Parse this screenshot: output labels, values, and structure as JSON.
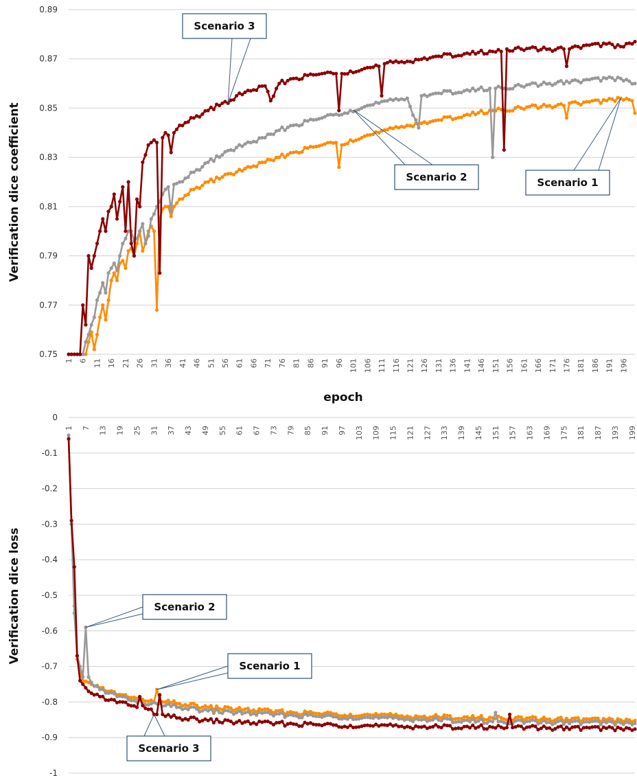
{
  "chart_data": [
    {
      "type": "line",
      "xlabel": "epoch",
      "ylabel": "Verification dice coefficient",
      "ylim": [
        0.75,
        0.89
      ],
      "yticks": [
        "0.75",
        "0.77",
        "0.79",
        "0.81",
        "0.83",
        "0.85",
        "0.87",
        "0.89"
      ],
      "xlim": [
        1,
        200
      ],
      "xtick_start": 1,
      "xtick_step": 5,
      "grid": true,
      "annotations": [
        {
          "text": "Scenario 3",
          "series": "Scenario 3",
          "x": 57
        },
        {
          "text": "Scenario 2",
          "series": "Scenario 2",
          "x": 101
        },
        {
          "text": "Scenario 1",
          "series": "Scenario 1",
          "x": 195
        }
      ],
      "series": [
        {
          "name": "Scenario 1",
          "color": "#ff8c00",
          "x": [
            1,
            6,
            7,
            8,
            9,
            10,
            11,
            12,
            13,
            14,
            15,
            16,
            17,
            18,
            19,
            20,
            21,
            22,
            23,
            24,
            25,
            26,
            27,
            28,
            29,
            30,
            31,
            32,
            33,
            34,
            35,
            36,
            37,
            38,
            40,
            45,
            50,
            55,
            60,
            65,
            70,
            75,
            80,
            90,
            95,
            96,
            97,
            100,
            110,
            120,
            130,
            140,
            150,
            160,
            170,
            175,
            176,
            177,
            180,
            190,
            195,
            199,
            200
          ],
          "y": [
            0.74,
            0.74,
            0.75,
            0.755,
            0.759,
            0.752,
            0.758,
            0.765,
            0.77,
            0.764,
            0.772,
            0.78,
            0.783,
            0.78,
            0.787,
            0.788,
            0.785,
            0.792,
            0.793,
            0.79,
            0.795,
            0.8,
            0.792,
            0.795,
            0.8,
            0.802,
            0.8,
            0.768,
            0.805,
            0.809,
            0.81,
            0.81,
            0.806,
            0.81,
            0.813,
            0.817,
            0.82,
            0.822,
            0.824,
            0.826,
            0.828,
            0.83,
            0.832,
            0.835,
            0.836,
            0.826,
            0.835,
            0.837,
            0.84,
            0.843,
            0.845,
            0.847,
            0.849,
            0.85,
            0.851,
            0.851,
            0.846,
            0.852,
            0.852,
            0.853,
            0.854,
            0.853,
            0.848
          ]
        },
        {
          "name": "Scenario 2",
          "color": "#999999",
          "x": [
            1,
            6,
            7,
            8,
            9,
            10,
            11,
            12,
            13,
            14,
            15,
            16,
            17,
            18,
            19,
            20,
            21,
            22,
            23,
            24,
            25,
            26,
            27,
            28,
            29,
            30,
            31,
            32,
            33,
            34,
            35,
            36,
            37,
            38,
            40,
            45,
            50,
            55,
            60,
            65,
            70,
            75,
            80,
            90,
            100,
            110,
            120,
            124,
            125,
            130,
            140,
            149,
            150,
            151,
            160,
            170,
            180,
            190,
            195,
            200
          ],
          "y": [
            0.74,
            0.75,
            0.755,
            0.758,
            0.762,
            0.765,
            0.772,
            0.775,
            0.779,
            0.775,
            0.783,
            0.785,
            0.787,
            0.784,
            0.79,
            0.795,
            0.797,
            0.8,
            0.8,
            0.796,
            0.797,
            0.8,
            0.803,
            0.795,
            0.798,
            0.805,
            0.807,
            0.81,
            0.812,
            0.815,
            0.817,
            0.818,
            0.808,
            0.819,
            0.82,
            0.824,
            0.828,
            0.831,
            0.834,
            0.836,
            0.838,
            0.841,
            0.843,
            0.846,
            0.849,
            0.852,
            0.854,
            0.842,
            0.855,
            0.856,
            0.857,
            0.858,
            0.83,
            0.858,
            0.859,
            0.86,
            0.861,
            0.862,
            0.862,
            0.86
          ]
        },
        {
          "name": "Scenario 3",
          "color": "#8b0000",
          "x": [
            1,
            5,
            6,
            7,
            8,
            9,
            10,
            11,
            12,
            13,
            14,
            15,
            16,
            17,
            18,
            19,
            20,
            21,
            22,
            23,
            24,
            25,
            26,
            27,
            28,
            29,
            30,
            31,
            32,
            33,
            34,
            35,
            36,
            37,
            38,
            40,
            45,
            50,
            55,
            57,
            60,
            65,
            70,
            72,
            75,
            80,
            90,
            95,
            96,
            97,
            100,
            110,
            111,
            112,
            120,
            130,
            140,
            150,
            153,
            154,
            155,
            160,
            170,
            175,
            176,
            177,
            180,
            190,
            195,
            200
          ],
          "y": [
            0.72,
            0.74,
            0.77,
            0.762,
            0.79,
            0.785,
            0.79,
            0.795,
            0.8,
            0.805,
            0.8,
            0.808,
            0.81,
            0.815,
            0.805,
            0.812,
            0.818,
            0.8,
            0.82,
            0.795,
            0.79,
            0.813,
            0.81,
            0.828,
            0.831,
            0.835,
            0.836,
            0.837,
            0.836,
            0.783,
            0.838,
            0.84,
            0.839,
            0.832,
            0.84,
            0.843,
            0.846,
            0.849,
            0.852,
            0.852,
            0.855,
            0.857,
            0.859,
            0.853,
            0.86,
            0.862,
            0.864,
            0.864,
            0.849,
            0.864,
            0.865,
            0.867,
            0.855,
            0.868,
            0.869,
            0.871,
            0.872,
            0.873,
            0.873,
            0.833,
            0.874,
            0.874,
            0.874,
            0.874,
            0.867,
            0.874,
            0.875,
            0.876,
            0.875,
            0.877
          ]
        }
      ]
    },
    {
      "type": "line",
      "xlabel": "",
      "ylabel": "Verification dice loss",
      "ylim": [
        -1,
        0
      ],
      "yticks": [
        "-1",
        "-0.9",
        "-0.8",
        "-0.7",
        "-0.6",
        "-0.5",
        "-0.4",
        "-0.3",
        "-0.2",
        "-0.1",
        "0"
      ],
      "xlim": [
        1,
        200
      ],
      "xtick_start": 1,
      "xtick_step": 6,
      "grid": true,
      "annotations": [
        {
          "text": "Scenario 2",
          "series": "Scenario 2",
          "x": 7
        },
        {
          "text": "Scenario 1",
          "series": "Scenario 1",
          "x": 32
        },
        {
          "text": "Scenario 3",
          "series": "Scenario 3",
          "x": 31
        }
      ],
      "series": [
        {
          "name": "Scenario 1",
          "color": "#ff8c00",
          "x": [
            1,
            2,
            3,
            4,
            5,
            6,
            7,
            8,
            9,
            10,
            12,
            15,
            20,
            25,
            30,
            31,
            32,
            33,
            35,
            40,
            50,
            60,
            80,
            100,
            120,
            150,
            170,
            190,
            200
          ],
          "y": [
            -0.06,
            -0.3,
            -0.53,
            -0.68,
            -0.72,
            -0.74,
            -0.742,
            -0.745,
            -0.75,
            -0.755,
            -0.76,
            -0.77,
            -0.78,
            -0.79,
            -0.795,
            -0.8,
            -0.765,
            -0.795,
            -0.8,
            -0.805,
            -0.815,
            -0.82,
            -0.83,
            -0.835,
            -0.84,
            -0.845,
            -0.848,
            -0.85,
            -0.852
          ]
        },
        {
          "name": "Scenario 2",
          "color": "#999999",
          "x": [
            1,
            2,
            3,
            4,
            5,
            6,
            7,
            8,
            9,
            10,
            12,
            15,
            20,
            25,
            30,
            35,
            40,
            50,
            60,
            80,
            100,
            120,
            150,
            151,
            152,
            170,
            190,
            200
          ],
          "y": [
            -0.05,
            -0.3,
            -0.55,
            -0.67,
            -0.7,
            -0.73,
            -0.59,
            -0.73,
            -0.745,
            -0.755,
            -0.765,
            -0.775,
            -0.785,
            -0.8,
            -0.805,
            -0.81,
            -0.815,
            -0.825,
            -0.83,
            -0.838,
            -0.843,
            -0.848,
            -0.855,
            -0.83,
            -0.855,
            -0.857,
            -0.858,
            -0.86
          ]
        },
        {
          "name": "Scenario 3",
          "color": "#8b0000",
          "x": [
            1,
            2,
            3,
            4,
            5,
            6,
            7,
            8,
            9,
            10,
            12,
            15,
            20,
            25,
            26,
            27,
            30,
            31,
            32,
            33,
            34,
            35,
            40,
            50,
            60,
            80,
            100,
            120,
            150,
            155,
            156,
            157,
            170,
            190,
            200
          ],
          "y": [
            -0.06,
            -0.29,
            -0.42,
            -0.67,
            -0.74,
            -0.75,
            -0.76,
            -0.77,
            -0.775,
            -0.78,
            -0.785,
            -0.795,
            -0.8,
            -0.815,
            -0.785,
            -0.81,
            -0.82,
            -0.835,
            -0.835,
            -0.78,
            -0.835,
            -0.84,
            -0.845,
            -0.852,
            -0.857,
            -0.862,
            -0.866,
            -0.869,
            -0.871,
            -0.872,
            -0.835,
            -0.872,
            -0.873,
            -0.874,
            -0.876
          ]
        }
      ]
    }
  ]
}
